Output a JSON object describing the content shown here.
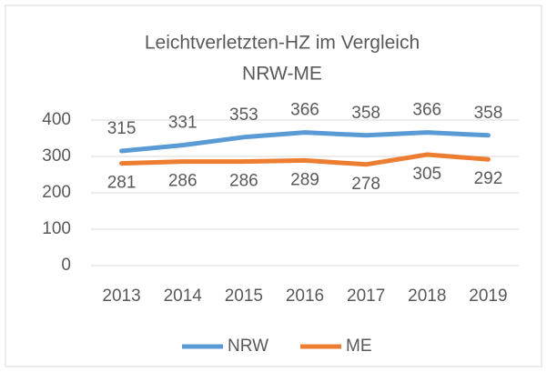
{
  "chart_data": {
    "type": "line",
    "title": [
      "Leichtverletzten-HZ im Vergleich",
      "NRW-ME"
    ],
    "categories": [
      "2013",
      "2014",
      "2015",
      "2016",
      "2017",
      "2018",
      "2019"
    ],
    "series": [
      {
        "name": "NRW",
        "color": "#5b9bd5",
        "values": [
          315,
          331,
          353,
          366,
          358,
          366,
          358
        ]
      },
      {
        "name": "ME",
        "color": "#ed7d31",
        "values": [
          281,
          286,
          286,
          289,
          278,
          305,
          292
        ]
      }
    ],
    "ylim": [
      0,
      400
    ],
    "yticks": [
      0,
      100,
      200,
      300,
      400
    ],
    "grid": true,
    "legend": "bottom"
  }
}
